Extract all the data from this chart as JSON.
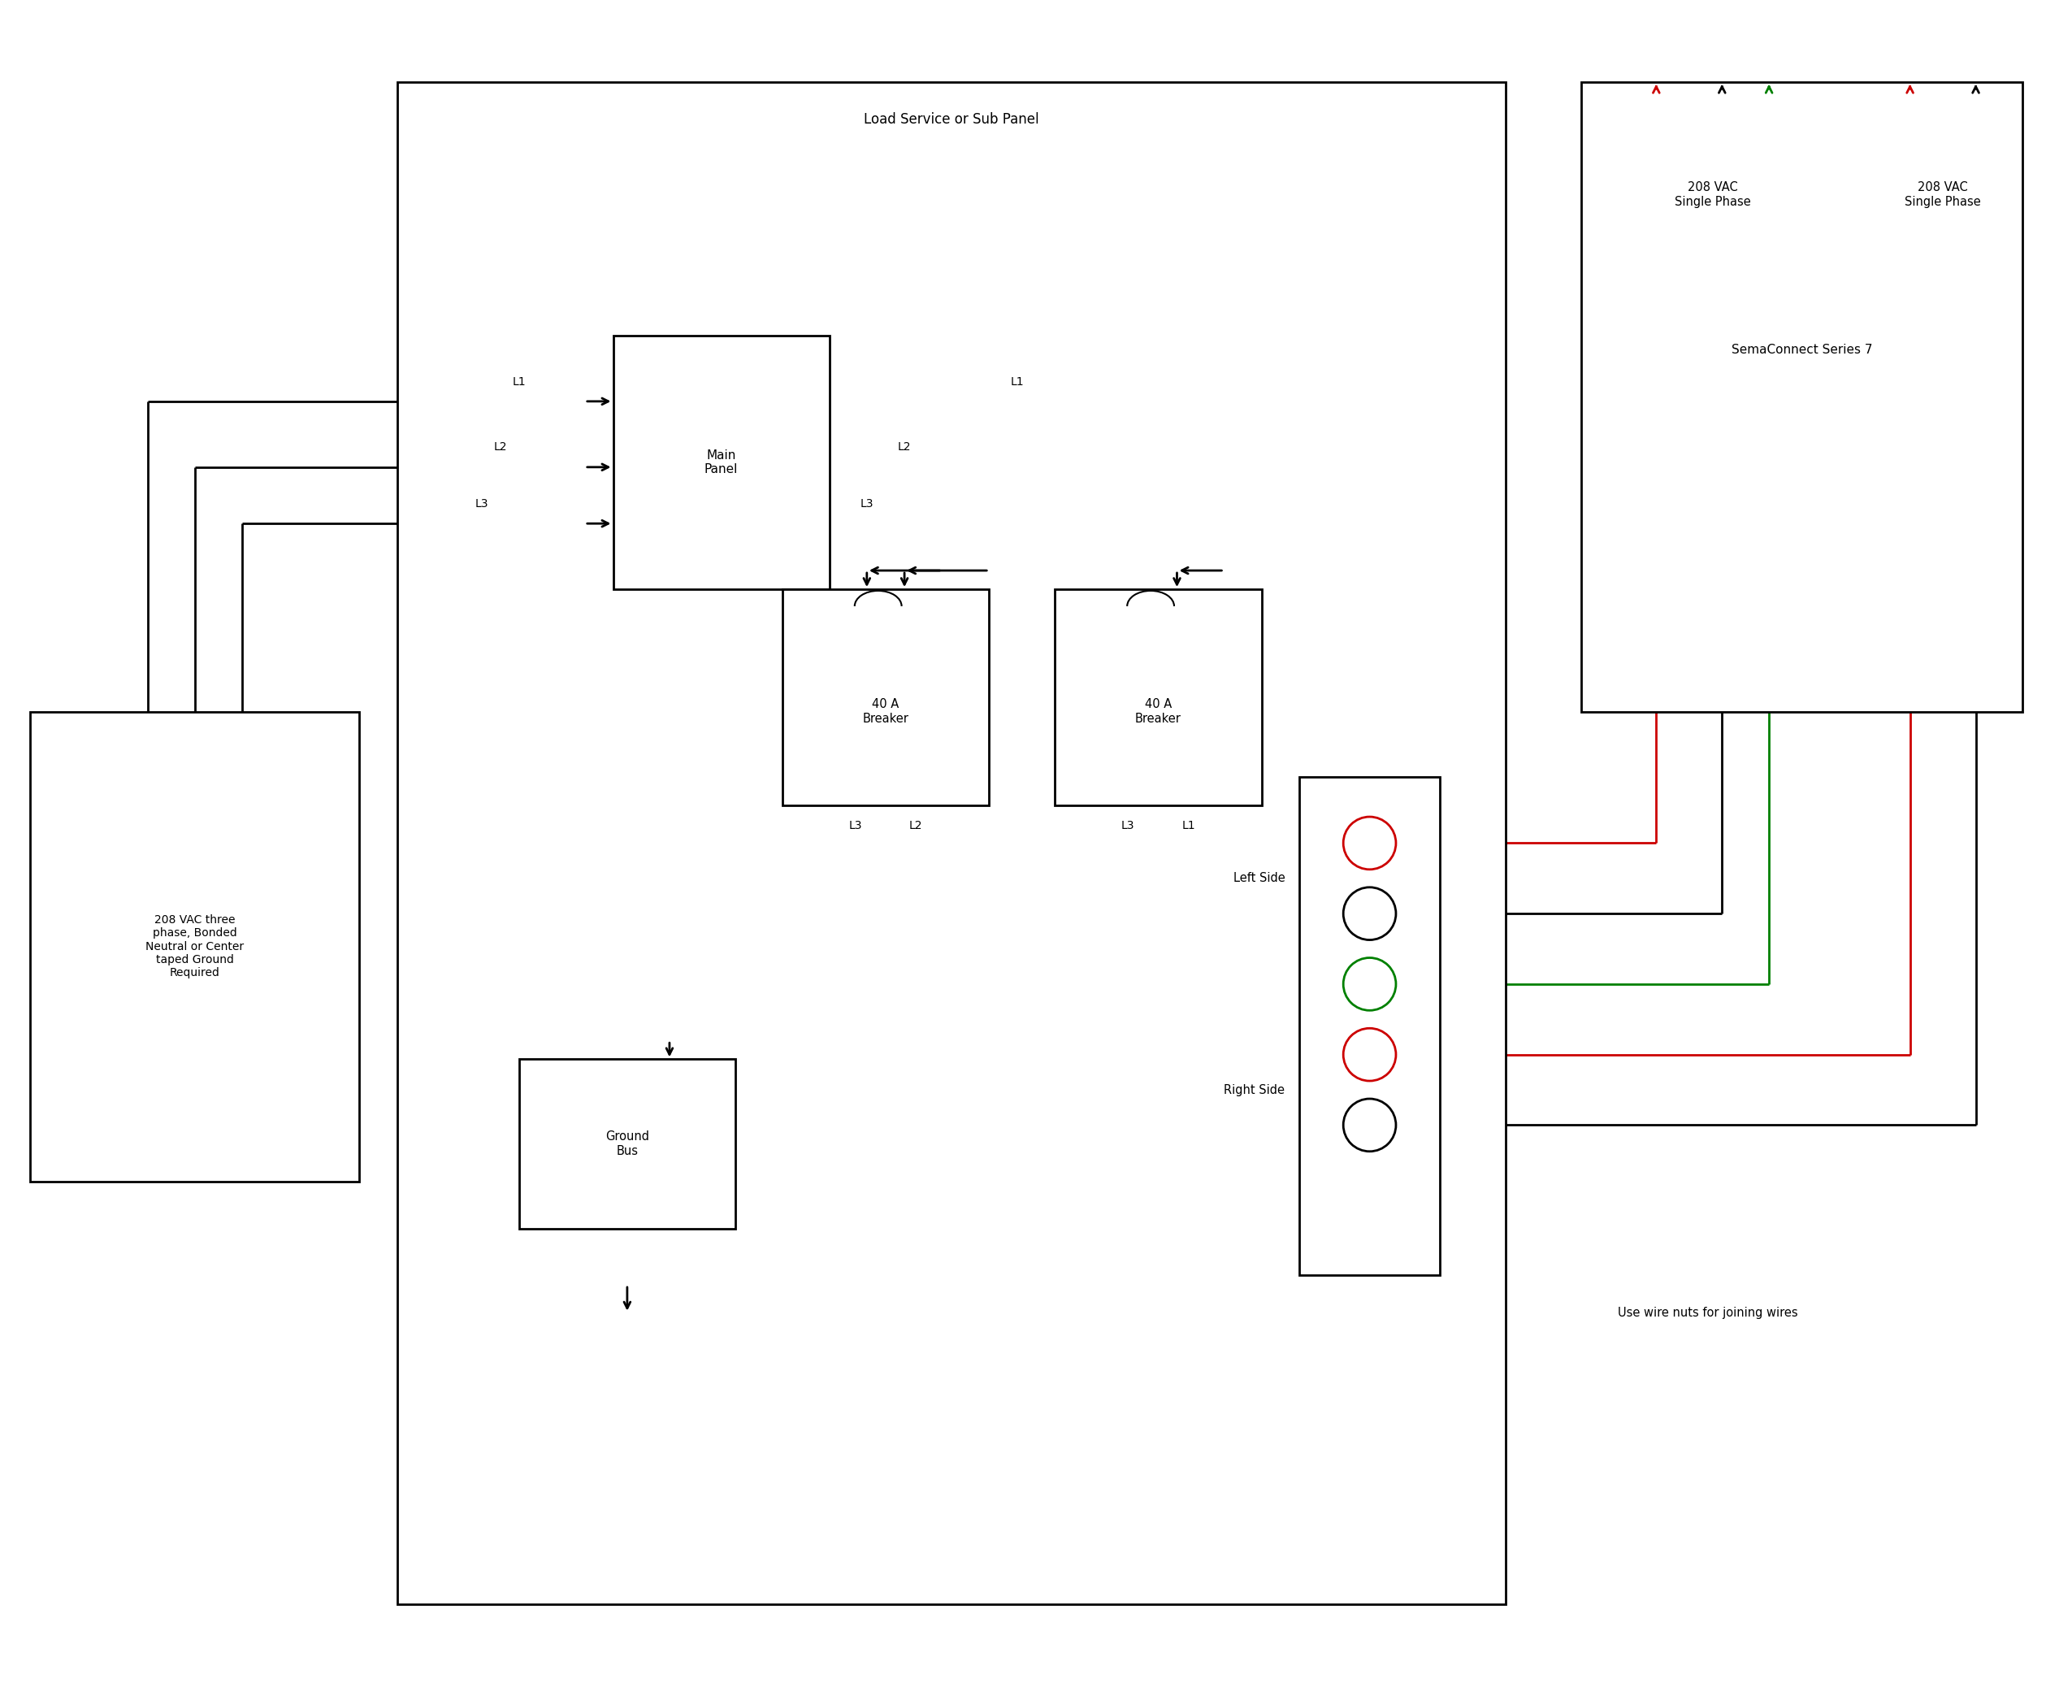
{
  "fig_width": 25.5,
  "fig_height": 20.98,
  "bg_color": "#ffffff",
  "title": "Load Service or Sub Panel",
  "semaconnect_title": "SemaConnect Series 7",
  "source_label": "208 VAC three\nphase, Bonded\nNeutral or Center\ntaped Ground\nRequired",
  "wire_note": "Use wire nuts for joining wires",
  "left_side_label": "Left Side",
  "right_side_label": "Right Side",
  "vac_left": "208 VAC\nSingle Phase",
  "vac_right": "208 VAC\nSingle Phase",
  "line_color": "#000000",
  "red_color": "#cc0000",
  "green_color": "#008000"
}
